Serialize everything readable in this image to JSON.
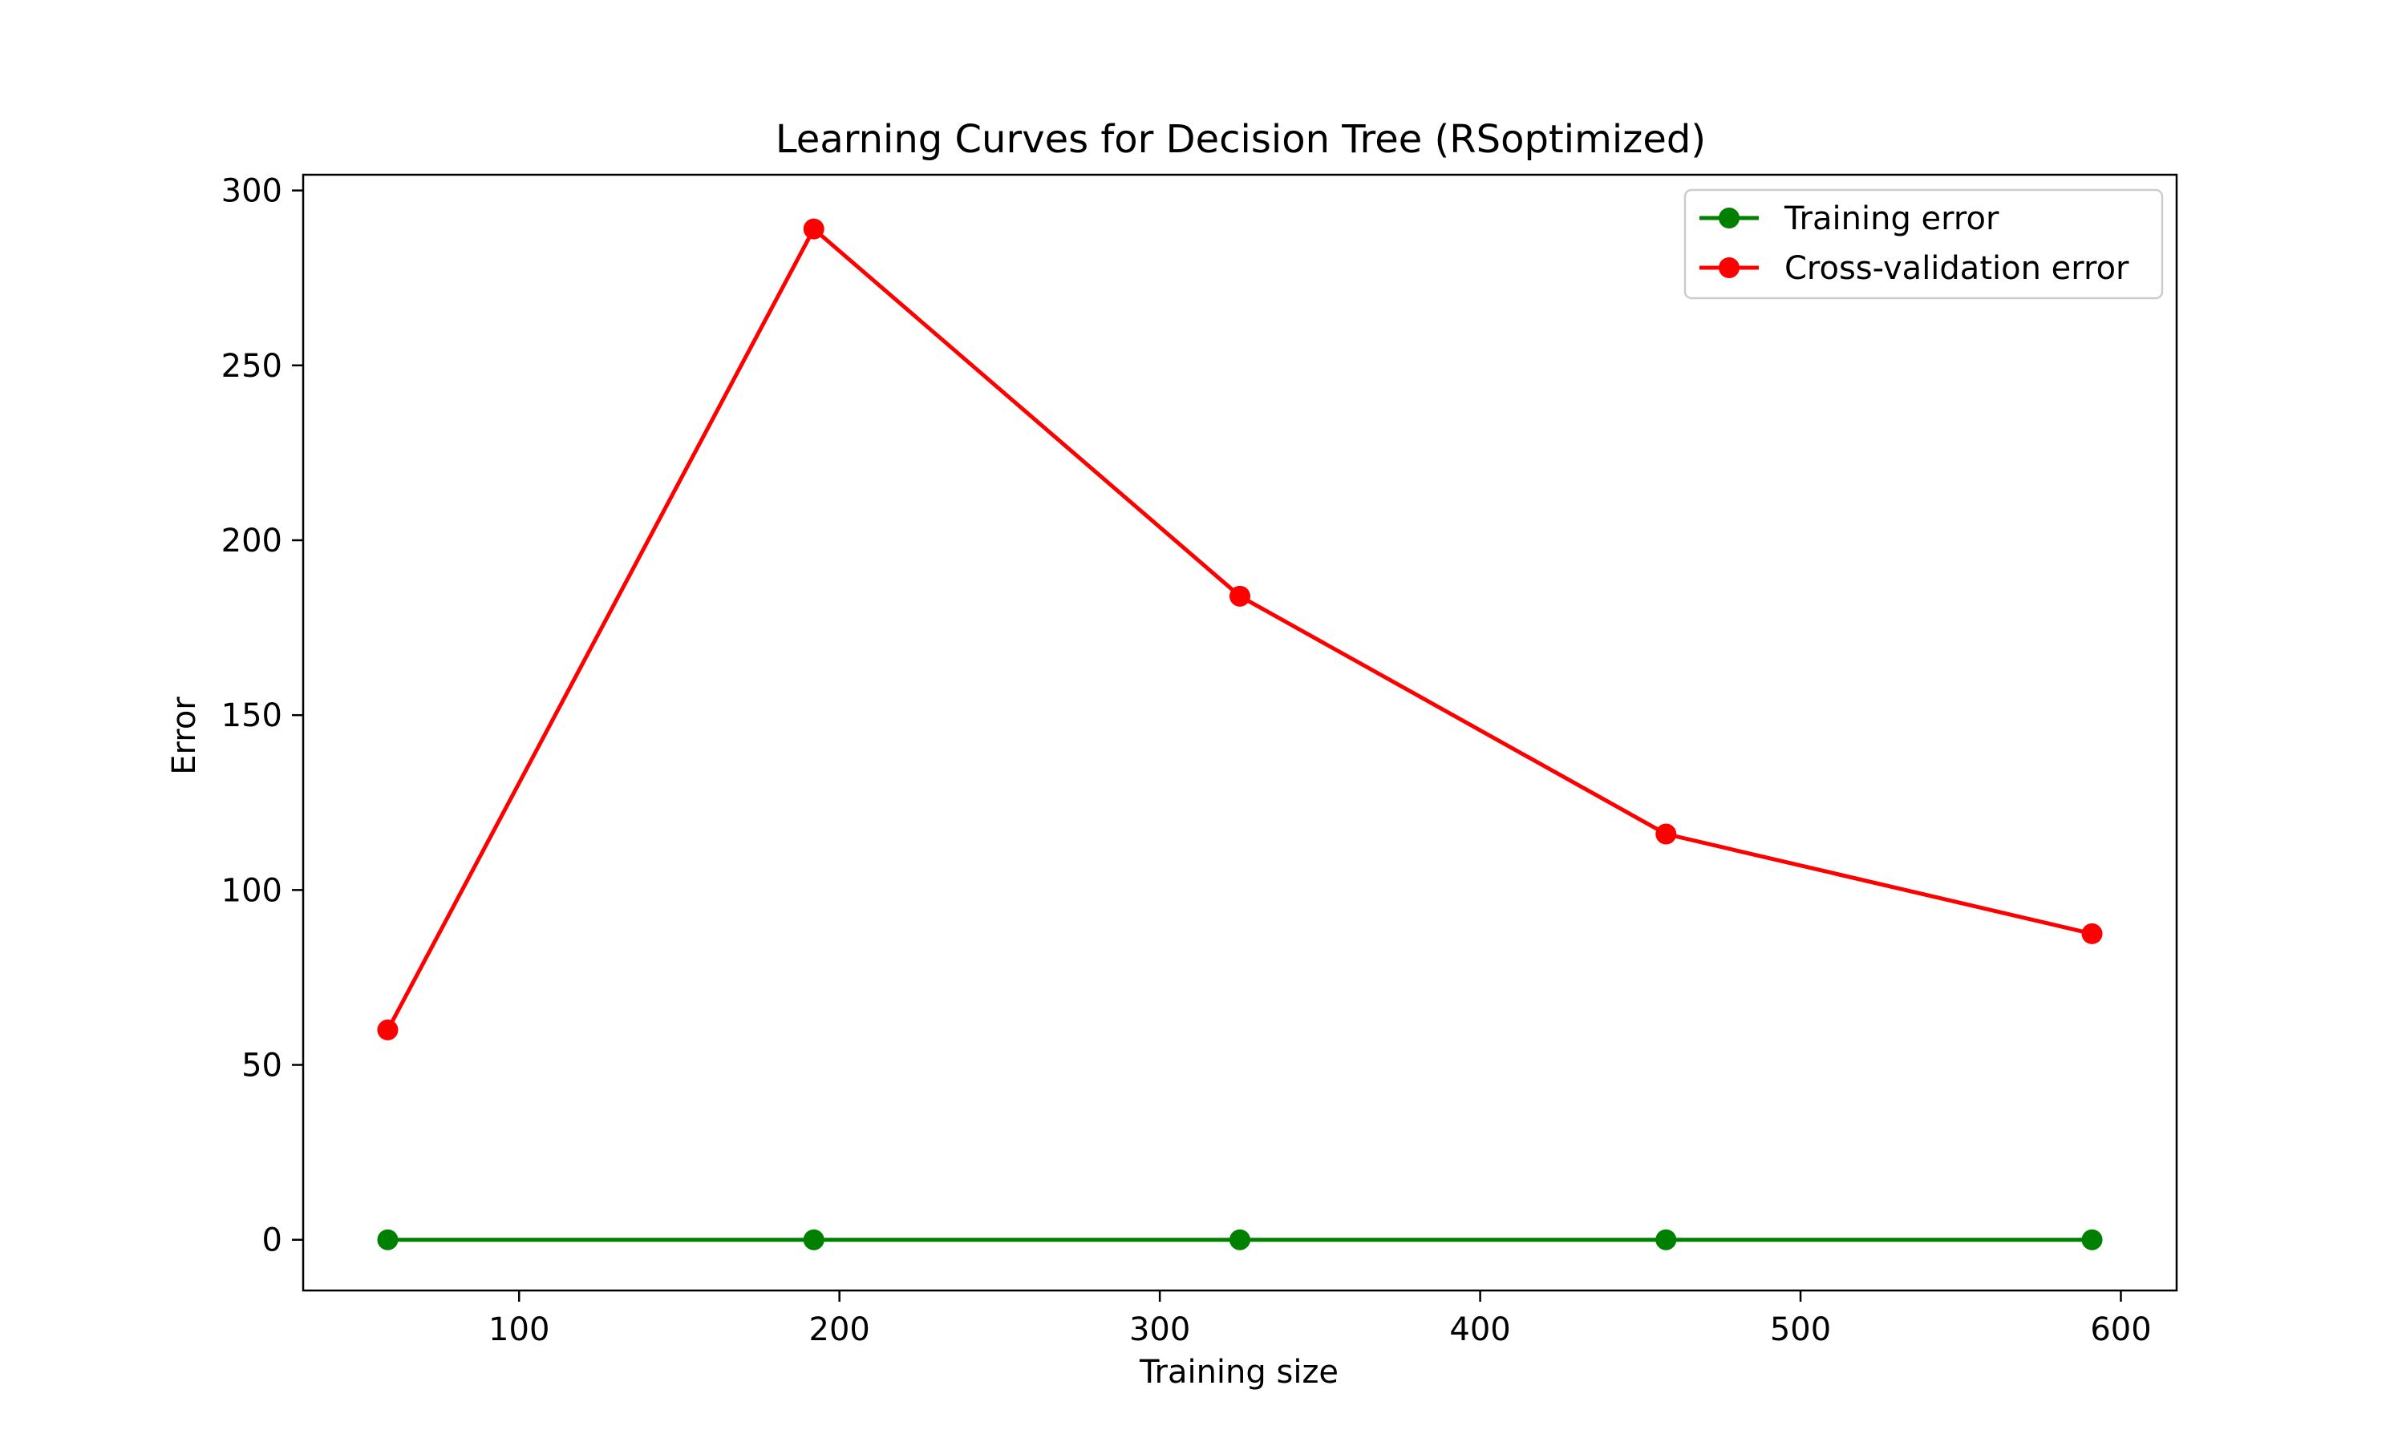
{
  "chart_data": {
    "type": "line",
    "title": "Learning Curves for Decision Tree (RSoptimized)",
    "xlabel": "Training size",
    "ylabel": "Error",
    "xlim": [
      32.6,
      617.4
    ],
    "ylim": [
      -14.5,
      304.5
    ],
    "xticks": [
      100,
      200,
      300,
      400,
      500,
      600
    ],
    "yticks": [
      0,
      50,
      100,
      150,
      200,
      250,
      300
    ],
    "x": [
      59,
      192,
      325,
      458,
      591
    ],
    "series": [
      {
        "name": "Training error",
        "color": "#008000",
        "marker": "circle",
        "values": [
          0,
          0,
          0,
          0,
          0
        ]
      },
      {
        "name": "Cross-validation error",
        "color": "#ff0000",
        "marker": "circle",
        "values": [
          60,
          289,
          184,
          116,
          87.5
        ]
      }
    ],
    "grid": false,
    "legend_position": "top-right"
  }
}
